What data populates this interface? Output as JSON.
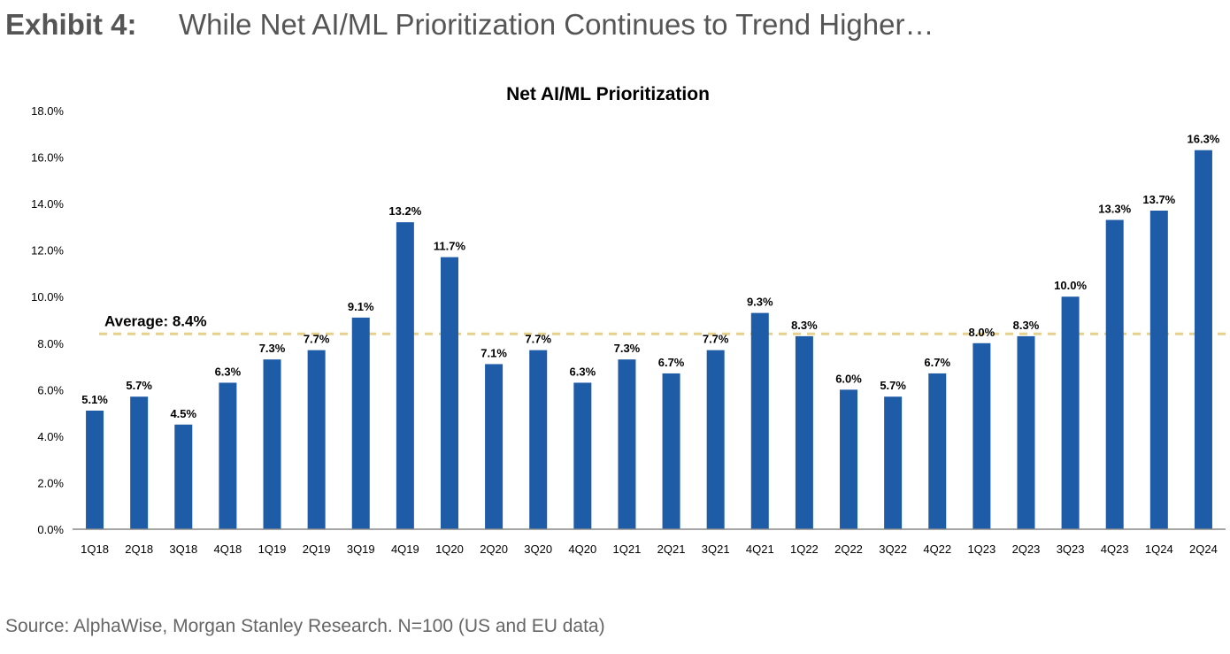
{
  "exhibit": {
    "label": "Exhibit 4:",
    "title": "While Net AI/ML Prioritization Continues to Trend Higher…"
  },
  "source": "Source: AlphaWise, Morgan Stanley Research. N=100 (US and EU data)",
  "chart_data": {
    "type": "bar",
    "title": "Net AI/ML Prioritization",
    "xlabel": "",
    "ylabel": "",
    "categories": [
      "1Q18",
      "2Q18",
      "3Q18",
      "4Q18",
      "1Q19",
      "2Q19",
      "3Q19",
      "4Q19",
      "1Q20",
      "2Q20",
      "3Q20",
      "4Q20",
      "1Q21",
      "2Q21",
      "3Q21",
      "4Q21",
      "1Q22",
      "2Q22",
      "3Q22",
      "4Q22",
      "1Q23",
      "2Q23",
      "3Q23",
      "4Q23",
      "1Q24",
      "2Q24"
    ],
    "values": [
      5.1,
      5.7,
      4.5,
      6.3,
      7.3,
      7.7,
      9.1,
      13.2,
      11.7,
      7.1,
      7.7,
      6.3,
      7.3,
      6.7,
      7.7,
      9.3,
      8.3,
      6.0,
      5.7,
      6.7,
      8.0,
      8.3,
      10.0,
      13.3,
      13.7,
      16.3
    ],
    "data_labels": [
      "5.1%",
      "5.7%",
      "4.5%",
      "6.3%",
      "7.3%",
      "7.7%",
      "9.1%",
      "13.2%",
      "11.7%",
      "7.1%",
      "7.7%",
      "6.3%",
      "7.3%",
      "6.7%",
      "7.7%",
      "9.3%",
      "8.3%",
      "6.0%",
      "5.7%",
      "6.7%",
      "8.0%",
      "8.3%",
      "10.0%",
      "13.3%",
      "13.7%",
      "16.3%"
    ],
    "ylim": [
      0,
      18
    ],
    "yticks": [
      0,
      2,
      4,
      6,
      8,
      10,
      12,
      14,
      16,
      18
    ],
    "ytick_labels": [
      "0.0%",
      "2.0%",
      "4.0%",
      "6.0%",
      "8.0%",
      "10.0%",
      "12.0%",
      "14.0%",
      "16.0%",
      "18.0%"
    ],
    "average": {
      "value": 8.4,
      "label": "Average: 8.4%"
    },
    "grid": false,
    "colors": {
      "bar": "#1f5ca8",
      "average_line": "#e6d08f",
      "text": "#000000"
    }
  }
}
